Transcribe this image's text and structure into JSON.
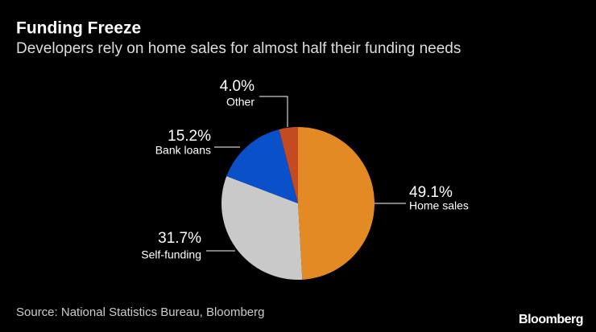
{
  "chart_data": {
    "type": "pie",
    "title": "Funding Freeze",
    "subtitle": "Developers rely on home sales for almost half their funding needs",
    "categories": [
      "Home sales",
      "Self-funding",
      "Bank loans",
      "Other"
    ],
    "values": [
      49.1,
      31.7,
      15.2,
      4.0
    ],
    "value_labels": [
      "49.1%",
      "31.7%",
      "15.2%",
      "4.0%"
    ],
    "colors": [
      "#e38a24",
      "#c9c9c9",
      "#0a50c8",
      "#c44a22"
    ],
    "source": "Source: National Statistics Bureau, Bloomberg",
    "brand": "Bloomberg"
  }
}
